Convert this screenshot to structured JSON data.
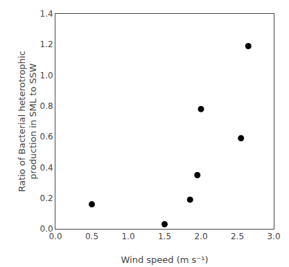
{
  "chart_data": {
    "type": "scatter",
    "x": [
      0.5,
      1.5,
      1.85,
      1.95,
      2.0,
      2.55,
      2.65
    ],
    "values": [
      0.16,
      0.03,
      0.19,
      0.35,
      0.78,
      0.59,
      1.19
    ],
    "xlabel": "Wind speed (m s⁻¹)",
    "ylabel": "Ratio of Bacterial heterotrophic\nproduction in SML to SSW",
    "xlim": [
      0,
      3
    ],
    "ylim": [
      0,
      1.4
    ],
    "xticks": [
      {
        "value": 0,
        "label": "0.0"
      },
      0.5,
      {
        "value": 1,
        "label": "1.0"
      },
      1.5,
      {
        "value": 2,
        "label": "2.0"
      },
      2.5,
      {
        "value": 3,
        "label": "3.0"
      }
    ],
    "yticks": [
      {
        "value": 0,
        "label": "0.0"
      },
      0.2,
      0.4,
      0.6,
      0.8,
      {
        "value": 1.0,
        "label": "1.0"
      },
      1.2,
      1.4
    ],
    "color": "#000000",
    "marker": "circle",
    "grid": false
  }
}
